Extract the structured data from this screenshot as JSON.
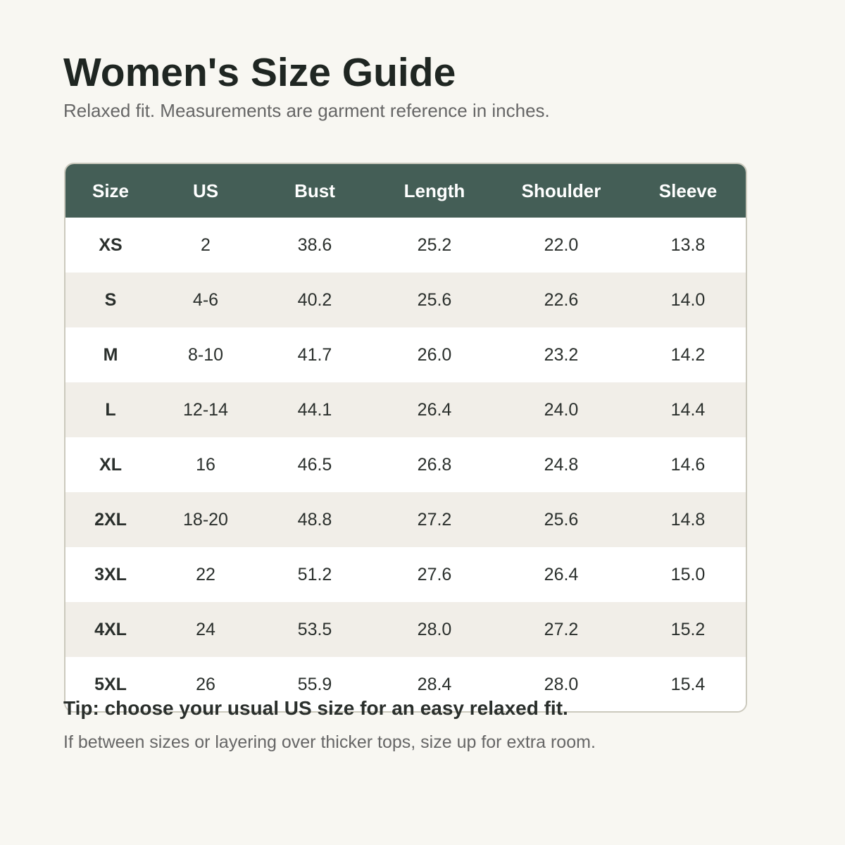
{
  "header": {
    "title": "Women's Size Guide",
    "subtitle": "Relaxed fit. Measurements are garment reference in inches."
  },
  "table": {
    "columns": [
      "Size",
      "US",
      "Bust",
      "Length",
      "Shoulder",
      "Sleeve"
    ],
    "rows": [
      [
        "XS",
        "2",
        "38.6",
        "25.2",
        "22.0",
        "13.8"
      ],
      [
        "S",
        "4-6",
        "40.2",
        "25.6",
        "22.6",
        "14.0"
      ],
      [
        "M",
        "8-10",
        "41.7",
        "26.0",
        "23.2",
        "14.2"
      ],
      [
        "L",
        "12-14",
        "44.1",
        "26.4",
        "24.0",
        "14.4"
      ],
      [
        "XL",
        "16",
        "46.5",
        "26.8",
        "24.8",
        "14.6"
      ],
      [
        "2XL",
        "18-20",
        "48.8",
        "27.2",
        "25.6",
        "14.8"
      ],
      [
        "3XL",
        "22",
        "51.2",
        "27.6",
        "26.4",
        "15.0"
      ],
      [
        "4XL",
        "24",
        "53.5",
        "28.0",
        "27.2",
        "15.2"
      ],
      [
        "5XL",
        "26",
        "55.9",
        "28.4",
        "28.0",
        "15.4"
      ]
    ]
  },
  "footer": {
    "tip": "Tip: choose your usual US size for an easy relaxed fit.",
    "note": "If between sizes or layering over thicker tops, size up for extra room."
  }
}
